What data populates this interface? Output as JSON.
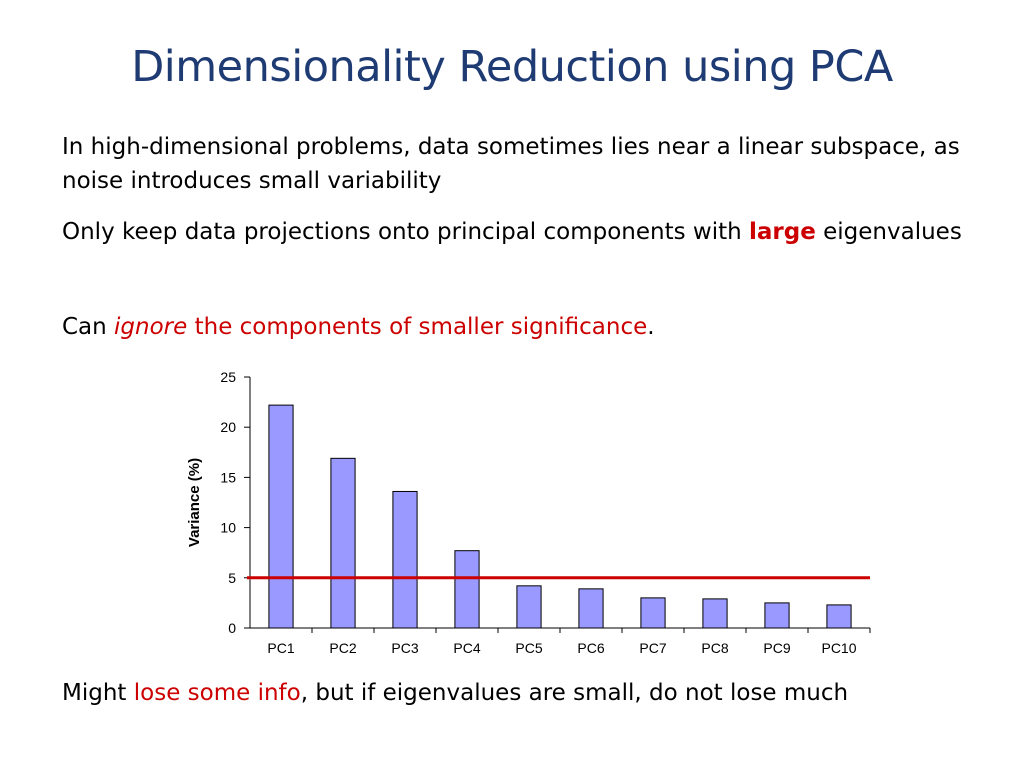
{
  "slide": {
    "title": "Dimensionality Reduction using PCA",
    "bullet1": "In high-dimensional problems, data sometimes lies near a linear subspace, as noise introduces small variability",
    "bullet2": {
      "pre": "Only keep data projections onto principal components with ",
      "highlight": "large",
      "post": " eigenvalues"
    },
    "bullet3": {
      "pre": "Can ",
      "highlight_italic": "ignore",
      "highlight": " the components of smaller significance",
      "post": "."
    },
    "bullet4": {
      "pre": "Might ",
      "highlight": "lose some info",
      "post": ", but if eigenvalues are small, do not lose much"
    }
  },
  "colors": {
    "title": "#1f3b73",
    "accent": "#cc0000",
    "bar_fill": "#9999ff",
    "bar_stroke": "#000000",
    "threshold_line": "#cc0000"
  },
  "chart_data": {
    "type": "bar",
    "categories": [
      "PC1",
      "PC2",
      "PC3",
      "PC4",
      "PC5",
      "PC6",
      "PC7",
      "PC8",
      "PC9",
      "PC10"
    ],
    "values": [
      22.2,
      16.9,
      13.6,
      7.7,
      4.2,
      3.9,
      3.0,
      2.9,
      2.5,
      2.3
    ],
    "title": "",
    "xlabel": "",
    "ylabel": "Variance (%)",
    "ylim": [
      0,
      25
    ],
    "yticks": [
      0,
      5,
      10,
      15,
      20,
      25
    ],
    "grid": false,
    "legend": "none",
    "threshold": 5
  }
}
